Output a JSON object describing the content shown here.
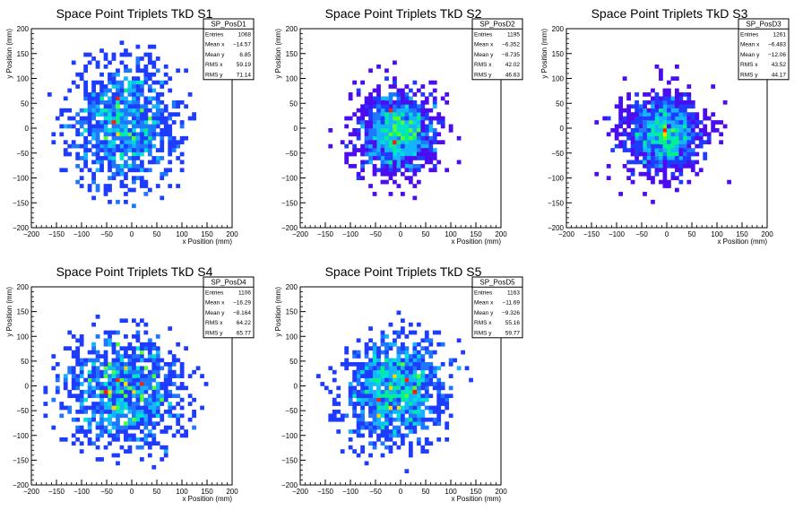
{
  "page": {
    "background": "#ffffff"
  },
  "chart_data": [
    {
      "type": "heatmap",
      "title": "Space Point Triplets TkD S1",
      "xlabel": "x Position (mm)",
      "ylabel": "y Position (mm)",
      "xlim": [
        -200,
        200
      ],
      "ylim": [
        -200,
        200
      ],
      "xticks": [
        "−200",
        "−150",
        "−100",
        "−50",
        "0",
        "50",
        "100",
        "150",
        "200"
      ],
      "yticks": [
        "200",
        "150",
        "100",
        "50",
        "0",
        "−50",
        "−100",
        "−150",
        "−200"
      ],
      "stats": {
        "name": "SP_PosD1",
        "rows": [
          {
            "label": "Entries",
            "value": "1068"
          },
          {
            "label": "Mean x",
            "value": "−14.57"
          },
          {
            "label": "Mean y",
            "value": "6.85"
          },
          {
            "label": "RMS x",
            "value": "59.19"
          },
          {
            "label": "RMS y",
            "value": "71.14"
          }
        ]
      },
      "distribution": {
        "mean_x": -14.57,
        "mean_y": 6.85,
        "rms_x": 59.19,
        "rms_y": 71.14,
        "entries": 1068
      }
    },
    {
      "type": "heatmap",
      "title": "Space Point Triplets TkD S2",
      "xlabel": "x Position (mm)",
      "ylabel": "y Position (mm)",
      "xlim": [
        -200,
        200
      ],
      "ylim": [
        -200,
        200
      ],
      "xticks": [
        "−200",
        "−150",
        "−100",
        "−50",
        "0",
        "50",
        "100",
        "150",
        "200"
      ],
      "yticks": [
        "200",
        "150",
        "100",
        "50",
        "0",
        "−50",
        "−100",
        "−150",
        "−200"
      ],
      "stats": {
        "name": "SP_PosD2",
        "rows": [
          {
            "label": "Entries",
            "value": "1195"
          },
          {
            "label": "Mean x",
            "value": "−6.352"
          },
          {
            "label": "Mean y",
            "value": "−8.735"
          },
          {
            "label": "RMS x",
            "value": "42.02"
          },
          {
            "label": "RMS y",
            "value": "46.63"
          }
        ]
      },
      "distribution": {
        "mean_x": -6.352,
        "mean_y": -8.735,
        "rms_x": 42.02,
        "rms_y": 46.63,
        "entries": 1195
      }
    },
    {
      "type": "heatmap",
      "title": "Space Point Triplets TkD S3",
      "xlabel": "x Position (mm)",
      "ylabel": "y Position (mm)",
      "xlim": [
        -200,
        200
      ],
      "ylim": [
        -200,
        200
      ],
      "xticks": [
        "−200",
        "−150",
        "−100",
        "−50",
        "0",
        "50",
        "100",
        "150",
        "200"
      ],
      "yticks": [
        "200",
        "150",
        "100",
        "50",
        "0",
        "−50",
        "−100",
        "−150",
        "−200"
      ],
      "stats": {
        "name": "SP_PosD3",
        "rows": [
          {
            "label": "Entries",
            "value": "1261"
          },
          {
            "label": "Mean x",
            "value": "−6.483"
          },
          {
            "label": "Mean y",
            "value": "−12.06"
          },
          {
            "label": "RMS x",
            "value": "43.52"
          },
          {
            "label": "RMS y",
            "value": "44.17"
          }
        ]
      },
      "distribution": {
        "mean_x": -6.483,
        "mean_y": -12.06,
        "rms_x": 43.52,
        "rms_y": 44.17,
        "entries": 1261
      }
    },
    {
      "type": "heatmap",
      "title": "Space Point Triplets TkD S4",
      "xlabel": "x Position (mm)",
      "ylabel": "y Position (mm)",
      "xlim": [
        -200,
        200
      ],
      "ylim": [
        -200,
        200
      ],
      "xticks": [
        "−200",
        "−150",
        "−100",
        "−50",
        "0",
        "50",
        "100",
        "150",
        "200"
      ],
      "yticks": [
        "200",
        "150",
        "100",
        "50",
        "0",
        "−50",
        "−100",
        "−150",
        "−200"
      ],
      "stats": {
        "name": "SP_PosD4",
        "rows": [
          {
            "label": "Entries",
            "value": "1106"
          },
          {
            "label": "Mean x",
            "value": "−16.29"
          },
          {
            "label": "Mean y",
            "value": "−8.164"
          },
          {
            "label": "RMS x",
            "value": "64.22"
          },
          {
            "label": "RMS y",
            "value": "65.77"
          }
        ]
      },
      "distribution": {
        "mean_x": -16.29,
        "mean_y": -8.164,
        "rms_x": 64.22,
        "rms_y": 65.77,
        "entries": 1106
      }
    },
    {
      "type": "heatmap",
      "title": "Space Point Triplets TkD S5",
      "xlabel": "x Position (mm)",
      "ylabel": "y Position (mm)",
      "xlim": [
        -200,
        200
      ],
      "ylim": [
        -200,
        200
      ],
      "xticks": [
        "−200",
        "−150",
        "−100",
        "−50",
        "0",
        "50",
        "100",
        "150",
        "200"
      ],
      "yticks": [
        "200",
        "150",
        "100",
        "50",
        "0",
        "−50",
        "−100",
        "−150",
        "−200"
      ],
      "stats": {
        "name": "SP_PosD5",
        "rows": [
          {
            "label": "Entries",
            "value": "1163"
          },
          {
            "label": "Mean x",
            "value": "−11.69"
          },
          {
            "label": "Mean y",
            "value": "−9.326"
          },
          {
            "label": "RMS x",
            "value": "55.16"
          },
          {
            "label": "RMS y",
            "value": "59.77"
          }
        ]
      },
      "distribution": {
        "mean_x": -11.69,
        "mean_y": -9.326,
        "rms_x": 55.16,
        "rms_y": 59.77,
        "entries": 1163
      }
    }
  ],
  "palette": [
    "#4b0cf0",
    "#1e3cff",
    "#1e78ff",
    "#14b4ff",
    "#00e1d2",
    "#00f090",
    "#50ff30",
    "#ffd700",
    "#ff1e00"
  ]
}
